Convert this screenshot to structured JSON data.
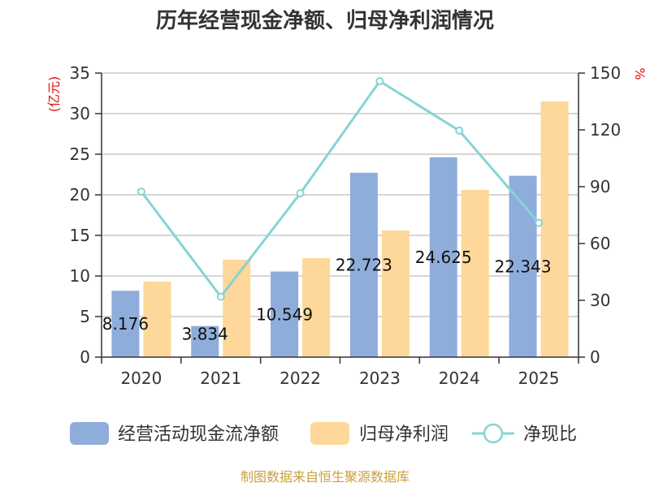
{
  "chart_data": {
    "type": "bar",
    "title": "历年经营现金净额、归母净利润情况",
    "categories": [
      "2020",
      "2021",
      "2022",
      "2023",
      "2024",
      "2025"
    ],
    "series": [
      {
        "name": "经营活动现金流净额",
        "kind": "bar",
        "axis": "left",
        "color": "#8eaddb",
        "values": [
          8.176,
          3.834,
          10.549,
          22.723,
          24.625,
          22.343
        ],
        "labels": [
          "8.176",
          "3.834",
          "10.549",
          "22.723",
          "24.625",
          "22.343"
        ]
      },
      {
        "name": "归母净利润",
        "kind": "bar",
        "axis": "left",
        "color": "#fdd89a",
        "values": [
          9.3,
          12.0,
          12.2,
          15.6,
          20.6,
          31.5
        ]
      },
      {
        "name": "净现比",
        "kind": "line",
        "axis": "right",
        "color": "#86d4d4",
        "values": [
          87.4,
          31.9,
          86.5,
          145.7,
          119.6,
          70.9
        ]
      }
    ],
    "y_left": {
      "label": "(亿元)",
      "min": 0,
      "max": 35,
      "ticks": [
        0,
        5,
        10,
        15,
        20,
        25,
        30,
        35
      ]
    },
    "y_right": {
      "label": "%",
      "min": 0,
      "max": 150,
      "ticks": [
        0,
        30,
        60,
        90,
        120,
        150
      ]
    },
    "grid": true,
    "legend_position": "bottom"
  },
  "source": "制图数据来自恒生聚源数据库"
}
